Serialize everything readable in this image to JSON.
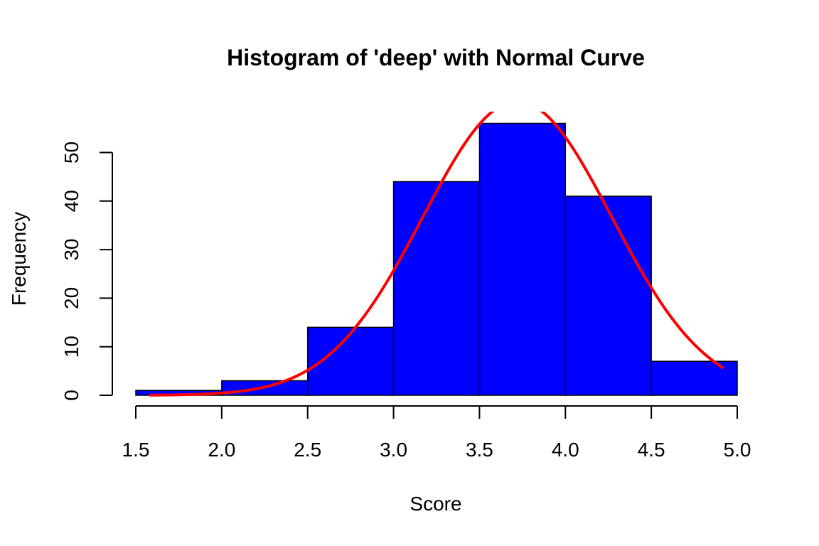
{
  "chart_data": {
    "type": "bar",
    "title": "Histogram of 'deep' with Normal Curve",
    "xlabel": "Score",
    "ylabel": "Frequency",
    "xlim": [
      1.5,
      5.0
    ],
    "ylim": [
      0,
      58
    ],
    "bins": [
      {
        "start": 1.5,
        "end": 2.0,
        "count": 1
      },
      {
        "start": 2.0,
        "end": 2.5,
        "count": 3
      },
      {
        "start": 2.5,
        "end": 3.0,
        "count": 14
      },
      {
        "start": 3.0,
        "end": 3.5,
        "count": 44
      },
      {
        "start": 3.5,
        "end": 4.0,
        "count": 56
      },
      {
        "start": 4.0,
        "end": 4.5,
        "count": 41
      },
      {
        "start": 4.5,
        "end": 5.0,
        "count": 7
      }
    ],
    "x_ticks": [
      1.5,
      2.0,
      2.5,
      3.0,
      3.5,
      4.0,
      4.5,
      5.0
    ],
    "x_tick_labels": [
      "1.5",
      "2.0",
      "2.5",
      "3.0",
      "3.5",
      "4.0",
      "4.5",
      "5.0"
    ],
    "y_ticks": [
      0,
      10,
      20,
      30,
      40,
      50
    ],
    "y_tick_labels": [
      "0",
      "10",
      "20",
      "30",
      "40",
      "50"
    ],
    "bar_color": "#0000ff",
    "bar_border_color": "#000000",
    "normal_curve": {
      "color": "#ff0000",
      "mean": 3.72,
      "sd": 0.55,
      "peak_frequency": 60.5,
      "x_from": 1.58,
      "x_to": 4.92
    }
  }
}
